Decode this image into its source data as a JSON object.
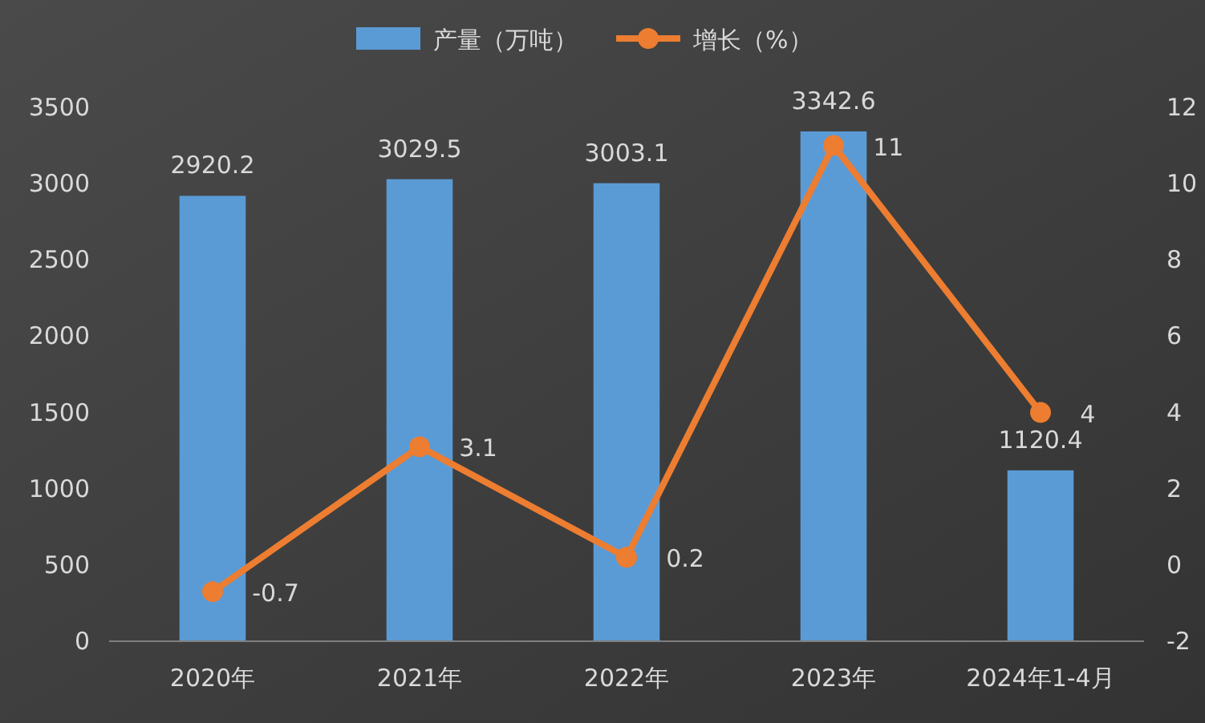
{
  "chart_data": {
    "type": "bar",
    "categories": [
      "2020年",
      "2021年",
      "2022年",
      "2023年",
      "2024年1-4月"
    ],
    "series": [
      {
        "name": "产量（万吨）",
        "color": "#5b9bd5",
        "values": [
          2920.2,
          3029.5,
          3003.1,
          3342.6,
          1120.4
        ]
      },
      {
        "name": "增长（%）",
        "type": "line",
        "axis": "y2",
        "color": "#ed7d31",
        "values": [
          -0.7,
          3.1,
          0.2,
          11,
          4
        ]
      }
    ],
    "ylim": [
      0,
      3500
    ],
    "yticks": [
      0,
      500,
      1000,
      1500,
      2000,
      2500,
      3000,
      3500
    ],
    "y2lim": [
      -2,
      12
    ],
    "y2ticks": [
      -2,
      0,
      2,
      4,
      6,
      8,
      10,
      12
    ],
    "data_labels": true,
    "legend": "top",
    "marker": "circle",
    "line_style": "solid"
  }
}
